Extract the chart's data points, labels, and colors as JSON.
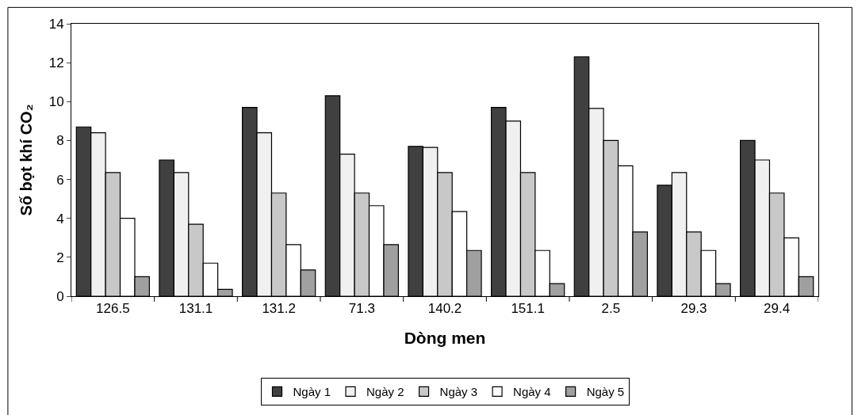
{
  "chart_data": {
    "type": "bar",
    "xlabel": "Dòng men",
    "ylabel": "Số bọt khí CO₂",
    "categories": [
      "126.5",
      "131.1",
      "131.2",
      "71.3",
      "140.2",
      "151.1",
      "2.5",
      "29.3",
      "29.4"
    ],
    "series": [
      {
        "name": "Ngày 1",
        "color": "#404040",
        "values": [
          8.7,
          7.0,
          9.7,
          10.3,
          7.7,
          9.7,
          12.3,
          5.7,
          8.0
        ]
      },
      {
        "name": "Ngày 2",
        "color": "#f0f0f0",
        "values": [
          8.4,
          6.35,
          8.4,
          7.3,
          7.65,
          9.0,
          9.65,
          6.35,
          7.0
        ]
      },
      {
        "name": "Ngày 3",
        "color": "#c8c8c8",
        "values": [
          6.35,
          3.7,
          5.3,
          5.3,
          6.35,
          6.35,
          8.0,
          3.3,
          5.3
        ]
      },
      {
        "name": "Ngày 4",
        "color": "#ffffff",
        "values": [
          4.0,
          1.7,
          2.65,
          4.65,
          4.35,
          2.35,
          6.7,
          2.35,
          3.0
        ]
      },
      {
        "name": "Ngày 5",
        "color": "#a0a0a0",
        "values": [
          1.0,
          0.35,
          1.35,
          2.65,
          2.35,
          0.65,
          3.3,
          0.65,
          1.0
        ]
      }
    ],
    "ylim": [
      0,
      14
    ],
    "yticks": [
      0,
      2,
      4,
      6,
      8,
      10,
      12,
      14
    ],
    "legend": "bottom"
  }
}
